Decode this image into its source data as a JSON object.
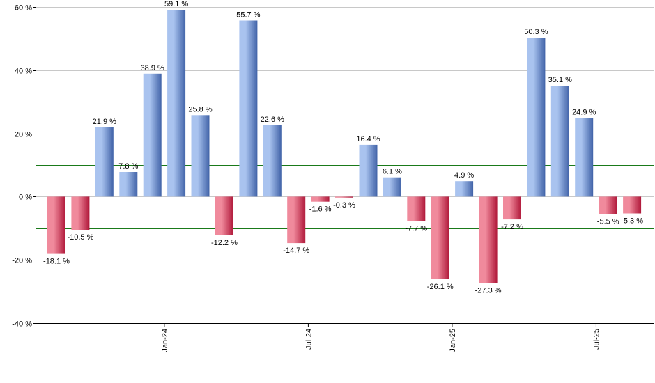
{
  "chart_data": {
    "type": "bar",
    "title": "",
    "xlabel": "",
    "ylabel": "",
    "ylim": [
      -40,
      60
    ],
    "yticks": [
      60,
      40,
      20,
      0,
      -20,
      -40
    ],
    "ytick_labels": [
      "60 %",
      "40 %",
      "20 %",
      "0 %",
      "-20 %",
      "-40 %"
    ],
    "grid": true,
    "reference_lines": [
      10,
      -10
    ],
    "x_tick_labels": [
      {
        "label": "Jan-24",
        "after_bar": 4
      },
      {
        "label": "Jul-24",
        "after_bar": 10
      },
      {
        "label": "Jan-25",
        "after_bar": 16
      },
      {
        "label": "Jul-25",
        "after_bar": 22
      }
    ],
    "values": [
      -18.1,
      -10.5,
      21.9,
      7.8,
      38.9,
      59.1,
      25.8,
      -12.2,
      55.7,
      22.6,
      -14.7,
      -1.6,
      -0.3,
      16.4,
      6.1,
      -7.7,
      -26.1,
      4.9,
      -27.3,
      -7.2,
      50.3,
      35.1,
      24.9,
      -5.5,
      -5.3
    ],
    "value_labels": [
      "-18.1 %",
      "-10.5 %",
      "21.9 %",
      "7.8 %",
      "38.9 %",
      "59.1 %",
      "25.8 %",
      "-12.2 %",
      "55.7 %",
      "22.6 %",
      "-14.7 %",
      "-1.6 %",
      "-0.3 %",
      "16.4 %",
      "6.1 %",
      "-7.7 %",
      "-26.1 %",
      "4.9 %",
      "-27.3 %",
      "-7.2 %",
      "50.3 %",
      "35.1 %",
      "24.9 %",
      "-5.5 %",
      "-5.3 %"
    ],
    "colors": {
      "positive_light": "#a9c3ef",
      "positive_dark": "#4163a8",
      "negative_light": "#f08a9c",
      "negative_dark": "#b0183a",
      "grid": "#c8c8c8",
      "reference": "#1a7a1a",
      "axis": "#000000"
    }
  }
}
